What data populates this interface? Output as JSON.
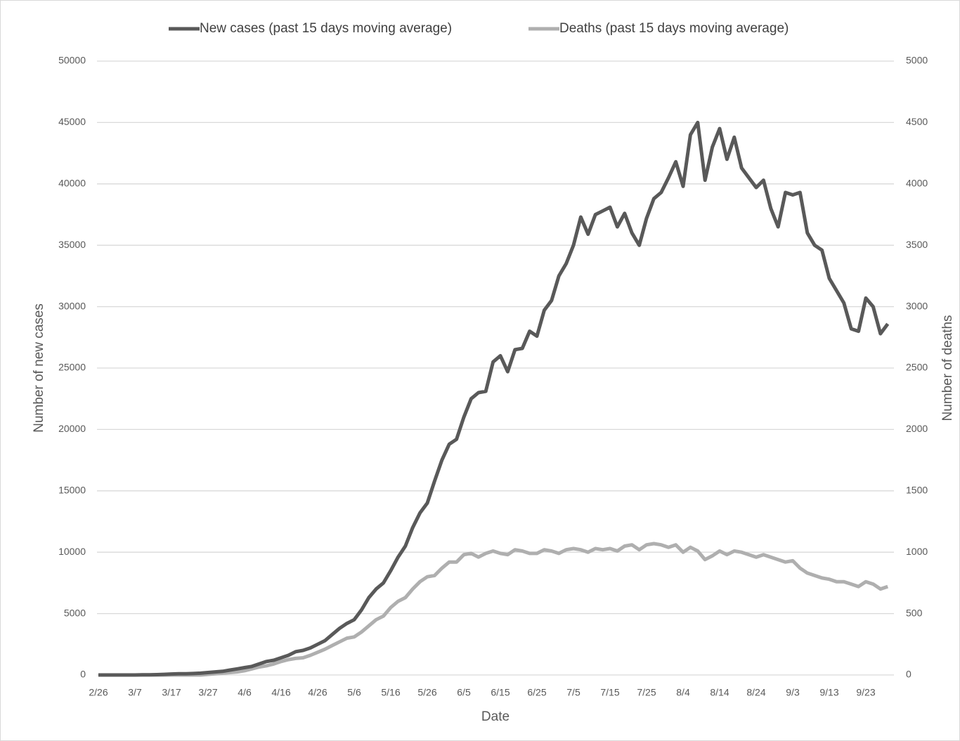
{
  "chart_data": {
    "type": "line",
    "x_label": "Date",
    "y_label": "Number of new cases",
    "y2_label": "Number of deaths",
    "categories": [
      "2/26",
      null,
      null,
      null,
      null,
      "3/7",
      null,
      null,
      null,
      null,
      "3/17",
      null,
      null,
      null,
      null,
      "3/27",
      null,
      null,
      null,
      null,
      "4/6",
      null,
      null,
      null,
      null,
      "4/16",
      null,
      null,
      null,
      null,
      "4/26",
      null,
      null,
      null,
      null,
      "5/6",
      null,
      null,
      null,
      null,
      "5/16",
      null,
      null,
      null,
      null,
      "5/26",
      null,
      null,
      null,
      null,
      "6/5",
      null,
      null,
      null,
      null,
      "6/15",
      null,
      null,
      null,
      null,
      "6/25",
      null,
      null,
      null,
      null,
      "7/5",
      null,
      null,
      null,
      null,
      "7/15",
      null,
      null,
      null,
      null,
      "7/25",
      null,
      null,
      null,
      null,
      "8/4",
      null,
      null,
      null,
      null,
      "8/14",
      null,
      null,
      null,
      null,
      "8/24",
      null,
      null,
      null,
      null,
      "9/3",
      null,
      null,
      null,
      null,
      "9/13",
      null,
      null,
      null,
      null,
      "9/23",
      null,
      null,
      null
    ],
    "series": [
      {
        "name": "New cases (past 15 days moving average)",
        "color": "#595959",
        "axis": "y",
        "values": [
          0,
          0,
          0,
          0,
          0,
          0,
          10,
          20,
          30,
          50,
          80,
          100,
          100,
          120,
          150,
          200,
          250,
          300,
          400,
          500,
          600,
          700,
          900,
          1100,
          1200,
          1400,
          1600,
          1900,
          2000,
          2200,
          2500,
          2800,
          3300,
          3800,
          4200,
          4500,
          5300,
          6300,
          7000,
          7500,
          8500,
          9600,
          10500,
          12000,
          13200,
          14000,
          15800,
          17500,
          18800,
          19200,
          21000,
          22500,
          23000,
          23100,
          25500,
          26000,
          24700,
          26500,
          26600,
          28000,
          27600,
          29700,
          30500,
          32500,
          33500,
          35000,
          37300,
          35900,
          37500,
          37800,
          38100,
          36500,
          37600,
          36000,
          35000,
          37200,
          38800,
          39300,
          40500,
          41800,
          39800,
          44000,
          45000,
          40300,
          43000,
          44500,
          42000,
          43800,
          41300,
          40500,
          39700,
          40300,
          38000,
          36500,
          39300,
          39100,
          39300,
          36000,
          35000,
          34600,
          32300,
          31300,
          30300,
          28200,
          28000,
          30700,
          30000,
          27800,
          28600
        ]
      },
      {
        "name": "Deaths (past 15 days moving average)",
        "color": "#afafaf",
        "axis": "y2",
        "values": [
          0,
          0,
          0,
          0,
          0,
          0,
          0,
          0,
          0,
          0,
          0,
          0,
          0,
          0,
          0,
          5,
          10,
          15,
          20,
          25,
          35,
          50,
          65,
          75,
          90,
          110,
          125,
          135,
          140,
          160,
          185,
          210,
          240,
          270,
          300,
          310,
          350,
          400,
          450,
          480,
          550,
          600,
          630,
          700,
          760,
          800,
          810,
          870,
          920,
          920,
          980,
          990,
          960,
          990,
          1010,
          990,
          980,
          1020,
          1010,
          990,
          990,
          1020,
          1010,
          990,
          1020,
          1030,
          1020,
          1000,
          1030,
          1020,
          1030,
          1010,
          1050,
          1060,
          1020,
          1060,
          1070,
          1060,
          1040,
          1060,
          1000,
          1040,
          1010,
          940,
          970,
          1010,
          980,
          1010,
          1000,
          980,
          960,
          980,
          960,
          940,
          920,
          930,
          870,
          830,
          810,
          790,
          780,
          760,
          760,
          740,
          720,
          760,
          740,
          700,
          720
        ]
      }
    ],
    "ylim": [
      0,
      50000
    ],
    "yticks": [
      0,
      5000,
      10000,
      15000,
      20000,
      25000,
      30000,
      35000,
      40000,
      45000,
      50000
    ],
    "y2lim": [
      0,
      5000
    ],
    "y2ticks": [
      0,
      500,
      1000,
      1500,
      2000,
      2500,
      3000,
      3500,
      4000,
      4500,
      5000
    ],
    "grid": true,
    "legend": "top"
  }
}
